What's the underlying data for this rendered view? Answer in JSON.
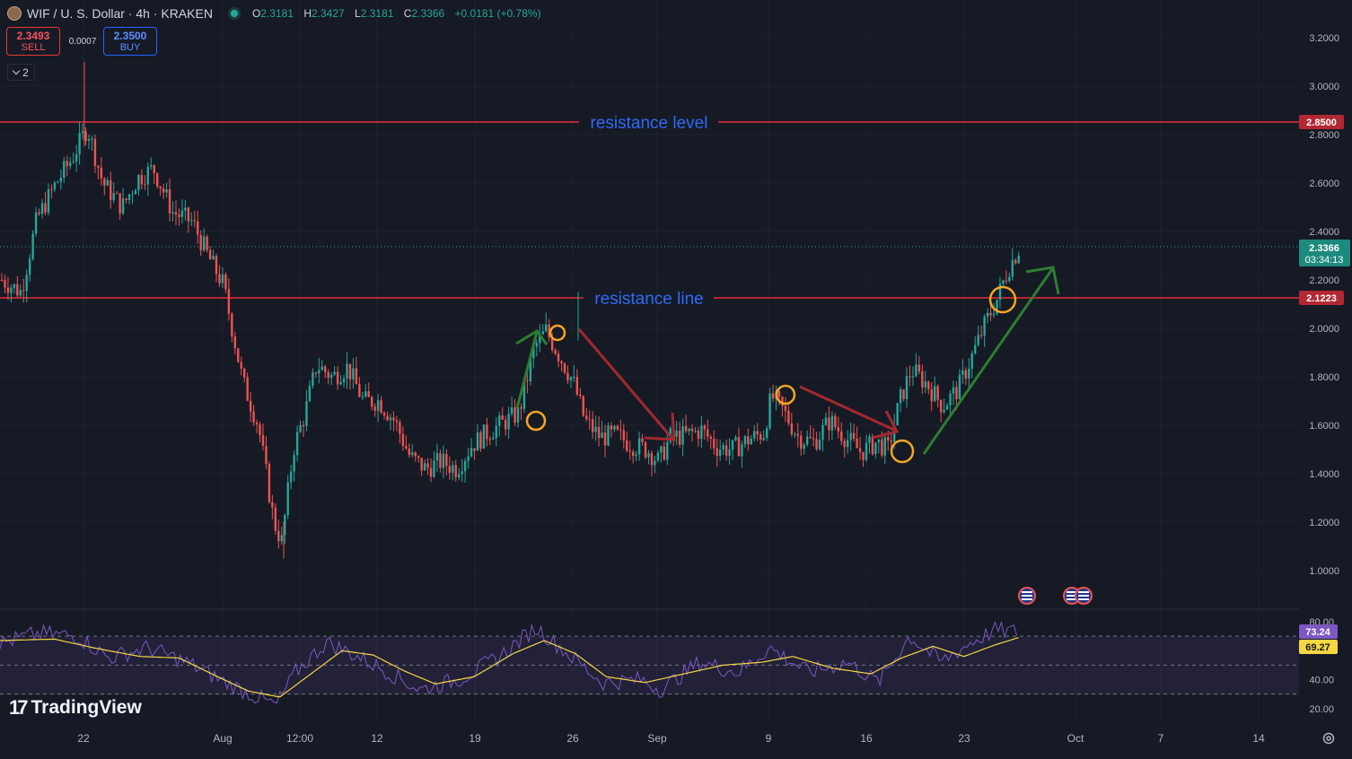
{
  "header": {
    "symbol": "WIF / U. S. Dollar · 4h · KRAKEN",
    "o_label": "O",
    "o": "2.3181",
    "h_label": "H",
    "h": "2.3427",
    "l_label": "L",
    "l": "2.3181",
    "c_label": "C",
    "c": "2.3366",
    "change": "+0.0181 (+0.78%)"
  },
  "trade": {
    "sell_price": "2.3493",
    "sell_label": "SELL",
    "spread": "0.0007",
    "buy_price": "2.3500",
    "buy_label": "BUY"
  },
  "indicators_count": "2",
  "brand": "TradingView",
  "colors": {
    "background": "#161a25",
    "up": "#26a69a",
    "down": "#ef5350",
    "resistance": "#b22833",
    "annotation_text": "#2e6bf5",
    "rsi_line": "#7e57c2",
    "rsi_ma": "#f5d742",
    "arrow_up": "#2e7d32",
    "arrow_down": "#a3282f",
    "circle": "#f5a623"
  },
  "chart_data": [
    {
      "type": "candlestick",
      "x_ticks": [
        "22",
        "Aug",
        "12:00",
        "12",
        "19",
        "26",
        "Sep",
        "9",
        "16",
        "23",
        "Oct",
        "7",
        "14"
      ],
      "y_ticks": [
        "3.2000",
        "3.0000",
        "2.8000",
        "2.6000",
        "2.4000",
        "2.2000",
        "2.0000",
        "1.8000",
        "1.6000",
        "1.4000",
        "1.2000",
        "1.0000"
      ],
      "ylim": [
        0.85,
        3.3
      ],
      "last_price": "2.3366",
      "countdown": "03:34:13",
      "resistance_level": {
        "value": "2.8500",
        "label": "resistance level"
      },
      "resistance_line": {
        "value": "2.1223",
        "label": "resistance line"
      },
      "price_path": [
        {
          "t": 0,
          "v": 2.2
        },
        {
          "t": 5,
          "v": 2.15
        },
        {
          "t": 9,
          "v": 2.45
        },
        {
          "t": 14,
          "v": 2.6
        },
        {
          "t": 18,
          "v": 2.7
        },
        {
          "t": 22,
          "v": 2.83
        },
        {
          "t": 26,
          "v": 2.6
        },
        {
          "t": 31,
          "v": 2.5
        },
        {
          "t": 35,
          "v": 2.62
        },
        {
          "t": 39,
          "v": 2.66
        },
        {
          "t": 44,
          "v": 2.48
        },
        {
          "t": 49,
          "v": 2.44
        },
        {
          "t": 53,
          "v": 2.3
        },
        {
          "t": 57,
          "v": 2.18
        },
        {
          "t": 62,
          "v": 1.78
        },
        {
          "t": 66,
          "v": 1.6
        },
        {
          "t": 70,
          "v": 1.2
        },
        {
          "t": 72,
          "v": 1.12
        },
        {
          "t": 75,
          "v": 1.5
        },
        {
          "t": 78,
          "v": 1.65
        },
        {
          "t": 81,
          "v": 1.85
        },
        {
          "t": 85,
          "v": 1.8
        },
        {
          "t": 89,
          "v": 1.84
        },
        {
          "t": 93,
          "v": 1.7
        },
        {
          "t": 97,
          "v": 1.7
        },
        {
          "t": 101,
          "v": 1.62
        },
        {
          "t": 105,
          "v": 1.47
        },
        {
          "t": 109,
          "v": 1.42
        },
        {
          "t": 113,
          "v": 1.45
        },
        {
          "t": 117,
          "v": 1.42
        },
        {
          "t": 121,
          "v": 1.52
        },
        {
          "t": 125,
          "v": 1.57
        },
        {
          "t": 129,
          "v": 1.61
        },
        {
          "t": 133,
          "v": 1.65
        },
        {
          "t": 137,
          "v": 1.92
        },
        {
          "t": 140,
          "v": 1.99
        },
        {
          "t": 143,
          "v": 1.9
        },
        {
          "t": 147,
          "v": 1.78
        },
        {
          "t": 150,
          "v": 1.62
        },
        {
          "t": 154,
          "v": 1.55
        },
        {
          "t": 158,
          "v": 1.56
        },
        {
          "t": 162,
          "v": 1.52
        },
        {
          "t": 166,
          "v": 1.5
        },
        {
          "t": 169,
          "v": 1.45
        },
        {
          "t": 172,
          "v": 1.55
        },
        {
          "t": 176,
          "v": 1.56
        },
        {
          "t": 180,
          "v": 1.58
        },
        {
          "t": 184,
          "v": 1.51
        },
        {
          "t": 188,
          "v": 1.5
        },
        {
          "t": 192,
          "v": 1.54
        },
        {
          "t": 196,
          "v": 1.57
        },
        {
          "t": 198,
          "v": 1.72
        },
        {
          "t": 201,
          "v": 1.66
        },
        {
          "t": 205,
          "v": 1.55
        },
        {
          "t": 209,
          "v": 1.53
        },
        {
          "t": 213,
          "v": 1.62
        },
        {
          "t": 217,
          "v": 1.55
        },
        {
          "t": 221,
          "v": 1.49
        },
        {
          "t": 225,
          "v": 1.53
        },
        {
          "t": 228,
          "v": 1.5
        },
        {
          "t": 231,
          "v": 1.7
        },
        {
          "t": 234,
          "v": 1.83
        },
        {
          "t": 238,
          "v": 1.77
        },
        {
          "t": 242,
          "v": 1.68
        },
        {
          "t": 246,
          "v": 1.75
        },
        {
          "t": 250,
          "v": 1.9
        },
        {
          "t": 253,
          "v": 2.02
        },
        {
          "t": 256,
          "v": 2.12
        },
        {
          "t": 259,
          "v": 2.25
        },
        {
          "t": 262,
          "v": 2.34
        }
      ]
    },
    {
      "type": "line",
      "name": "RSI",
      "y_ticks": [
        "80.00",
        "40.00",
        "20.00"
      ],
      "ylim": [
        17,
        82
      ],
      "bands": [
        70,
        50,
        30
      ],
      "rsi_value": "73.24",
      "rsi_ma_value": "69.27",
      "rsi_path": [
        {
          "t": 0,
          "v": 65
        },
        {
          "t": 10,
          "v": 72
        },
        {
          "t": 20,
          "v": 70
        },
        {
          "t": 28,
          "v": 55
        },
        {
          "t": 38,
          "v": 62
        },
        {
          "t": 48,
          "v": 52
        },
        {
          "t": 58,
          "v": 38
        },
        {
          "t": 66,
          "v": 28
        },
        {
          "t": 71,
          "v": 22
        },
        {
          "t": 76,
          "v": 45
        },
        {
          "t": 84,
          "v": 66
        },
        {
          "t": 92,
          "v": 56
        },
        {
          "t": 100,
          "v": 45
        },
        {
          "t": 108,
          "v": 33
        },
        {
          "t": 118,
          "v": 40
        },
        {
          "t": 128,
          "v": 55
        },
        {
          "t": 138,
          "v": 76
        },
        {
          "t": 146,
          "v": 58
        },
        {
          "t": 155,
          "v": 38
        },
        {
          "t": 165,
          "v": 40
        },
        {
          "t": 170,
          "v": 33
        },
        {
          "t": 180,
          "v": 52
        },
        {
          "t": 190,
          "v": 45
        },
        {
          "t": 198,
          "v": 62
        },
        {
          "t": 208,
          "v": 45
        },
        {
          "t": 218,
          "v": 52
        },
        {
          "t": 226,
          "v": 38
        },
        {
          "t": 234,
          "v": 70
        },
        {
          "t": 242,
          "v": 52
        },
        {
          "t": 250,
          "v": 66
        },
        {
          "t": 256,
          "v": 74
        },
        {
          "t": 262,
          "v": 73
        }
      ],
      "ma_path": [
        {
          "t": 0,
          "v": 67
        },
        {
          "t": 14,
          "v": 68
        },
        {
          "t": 24,
          "v": 62
        },
        {
          "t": 36,
          "v": 56
        },
        {
          "t": 46,
          "v": 55
        },
        {
          "t": 56,
          "v": 42
        },
        {
          "t": 64,
          "v": 32
        },
        {
          "t": 72,
          "v": 28
        },
        {
          "t": 80,
          "v": 44
        },
        {
          "t": 88,
          "v": 60
        },
        {
          "t": 96,
          "v": 57
        },
        {
          "t": 104,
          "v": 46
        },
        {
          "t": 112,
          "v": 37
        },
        {
          "t": 122,
          "v": 42
        },
        {
          "t": 132,
          "v": 58
        },
        {
          "t": 140,
          "v": 67
        },
        {
          "t": 148,
          "v": 58
        },
        {
          "t": 156,
          "v": 42
        },
        {
          "t": 166,
          "v": 38
        },
        {
          "t": 176,
          "v": 44
        },
        {
          "t": 186,
          "v": 50
        },
        {
          "t": 196,
          "v": 52
        },
        {
          "t": 204,
          "v": 56
        },
        {
          "t": 214,
          "v": 48
        },
        {
          "t": 224,
          "v": 44
        },
        {
          "t": 232,
          "v": 55
        },
        {
          "t": 240,
          "v": 63
        },
        {
          "t": 248,
          "v": 56
        },
        {
          "t": 256,
          "v": 64
        },
        {
          "t": 262,
          "v": 69
        }
      ]
    }
  ]
}
